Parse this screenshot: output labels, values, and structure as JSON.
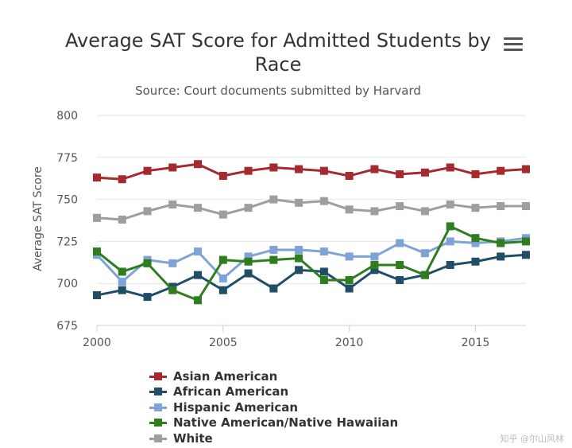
{
  "title": "Average SAT Score for Admitted Students by Race",
  "subtitle": "Source: Court documents submitted by Harvard",
  "menu_icon": "hamburger-menu-icon",
  "watermark": "知乎 @尔山风林",
  "chart_data": {
    "type": "line",
    "title": "Average SAT Score for Admitted Students by Race",
    "subtitle": "Source: Court documents submitted by Harvard",
    "xlabel": "",
    "ylabel": "Average SAT Score",
    "xlim": [
      2000,
      2017
    ],
    "ylim": [
      675,
      800
    ],
    "x_ticks": [
      2000,
      2005,
      2010,
      2015
    ],
    "y_ticks": [
      675,
      700,
      725,
      750,
      775,
      800
    ],
    "grid": true,
    "legend_position": "bottom",
    "x": [
      2000,
      2001,
      2002,
      2003,
      2004,
      2005,
      2006,
      2007,
      2008,
      2009,
      2010,
      2011,
      2012,
      2013,
      2014,
      2015,
      2016,
      2017
    ],
    "series": [
      {
        "name": "Asian American",
        "color": "#a52a2f",
        "values": [
          763,
          762,
          767,
          769,
          771,
          764,
          767,
          769,
          768,
          767,
          764,
          768,
          765,
          766,
          769,
          765,
          767,
          768
        ]
      },
      {
        "name": "African American",
        "color": "#1f4e66",
        "values": [
          693,
          696,
          692,
          698,
          705,
          696,
          706,
          697,
          708,
          707,
          697,
          708,
          702,
          705,
          711,
          713,
          716,
          717
        ]
      },
      {
        "name": "Hispanic American",
        "color": "#7ea3d6",
        "values": [
          717,
          701,
          714,
          712,
          719,
          703,
          716,
          720,
          720,
          719,
          716,
          716,
          724,
          718,
          725,
          724,
          725,
          727
        ]
      },
      {
        "name": "Native American/Native Hawaiian",
        "color": "#2e7d1e",
        "values": [
          719,
          707,
          712,
          696,
          690,
          714,
          713,
          714,
          715,
          702,
          702,
          711,
          711,
          705,
          734,
          727,
          724,
          725
        ]
      },
      {
        "name": "White",
        "color": "#9e9e9e",
        "values": [
          739,
          738,
          743,
          747,
          745,
          741,
          745,
          750,
          748,
          749,
          744,
          743,
          746,
          743,
          747,
          745,
          746,
          746
        ]
      }
    ]
  }
}
